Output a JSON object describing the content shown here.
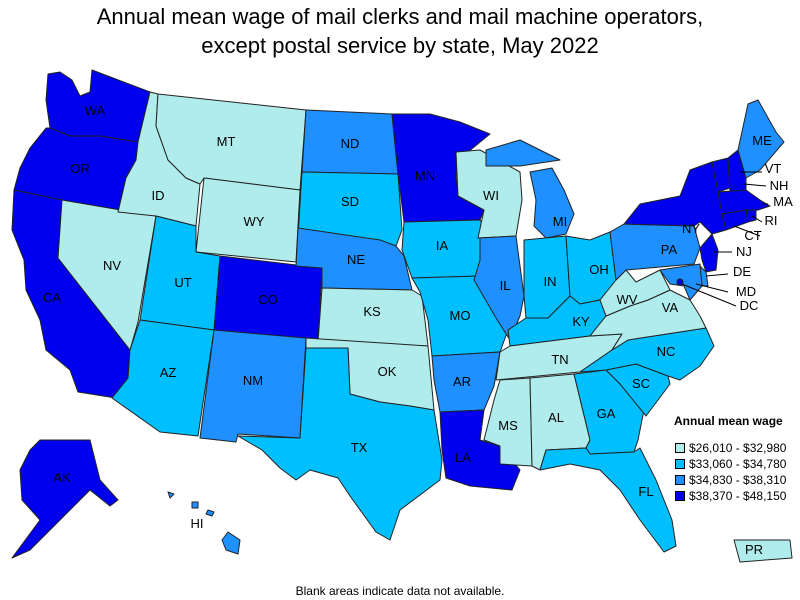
{
  "title_line1": "Annual mean wage of mail clerks and mail machine operators,",
  "title_line2": "except postal service by state, May 2022",
  "note": "Blank areas indicate data not available.",
  "legend": {
    "title": "Annual mean wage",
    "items": [
      {
        "label": "$26,010 - $32,980",
        "color": "#b0ecec"
      },
      {
        "label": "$33,060 - $34,780",
        "color": "#00bfff"
      },
      {
        "label": "$34,830 - $38,310",
        "color": "#1e90ff"
      },
      {
        "label": "$38,370 - $48,150",
        "color": "#0000ee"
      }
    ]
  },
  "states": {
    "WA": 3,
    "OR": 3,
    "CA": 3,
    "NV": 0,
    "ID": 0,
    "MT": 0,
    "WY": 0,
    "UT": 1,
    "AZ": 1,
    "CO": 3,
    "NM": 2,
    "ND": 2,
    "SD": 1,
    "NE": 2,
    "KS": 0,
    "OK": 0,
    "TX": 1,
    "MN": 3,
    "IA": 1,
    "MO": 1,
    "AR": 2,
    "LA": 3,
    "WI": 0,
    "IL": 2,
    "MI": 2,
    "IN": 1,
    "OH": 1,
    "KY": 1,
    "TN": 0,
    "MS": 0,
    "AL": 0,
    "GA": 1,
    "FL": 1,
    "SC": 1,
    "NC": 1,
    "VA": 0,
    "WV": 0,
    "PA": 2,
    "NY": 3,
    "VT": 3,
    "NH": 3,
    "ME": 2,
    "MA": 3,
    "RI": 3,
    "CT": 3,
    "NJ": 3,
    "DE": 2,
    "MD": 2,
    "DC": 3,
    "AK": 3,
    "HI": 2,
    "PR": 0
  },
  "labels": {
    "WA": "WA",
    "OR": "OR",
    "CA": "CA",
    "NV": "NV",
    "ID": "ID",
    "MT": "MT",
    "WY": "WY",
    "UT": "UT",
    "AZ": "AZ",
    "CO": "CO",
    "NM": "NM",
    "ND": "ND",
    "SD": "SD",
    "NE": "NE",
    "KS": "KS",
    "OK": "OK",
    "TX": "TX",
    "MN": "MN",
    "IA": "IA",
    "MO": "MO",
    "AR": "AR",
    "LA": "LA",
    "WI": "WI",
    "IL": "IL",
    "MI": "MI",
    "IN": "IN",
    "OH": "OH",
    "KY": "KY",
    "TN": "TN",
    "MS": "MS",
    "AL": "AL",
    "GA": "GA",
    "FL": "FL",
    "SC": "SC",
    "NC": "NC",
    "VA": "VA",
    "WV": "WV",
    "PA": "PA",
    "NY": "NY",
    "VT": "VT",
    "NH": "NH",
    "ME": "ME",
    "MA": "MA",
    "RI": "RI",
    "CT": "CT",
    "NJ": "NJ",
    "DE": "DE",
    "MD": "MD",
    "DC": "DC",
    "AK": "AK",
    "HI": "HI",
    "PR": "PR"
  }
}
